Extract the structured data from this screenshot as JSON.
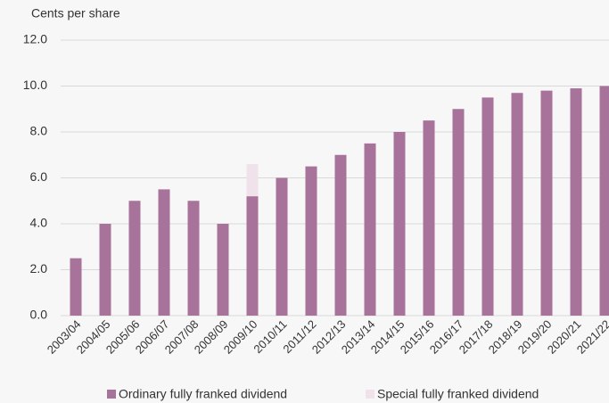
{
  "chart_data": {
    "type": "stacked_bar",
    "y_axis_label": "Cents per share",
    "categories": [
      "2003/04",
      "2004/05",
      "2005/06",
      "2006/07",
      "2007/08",
      "2008/09",
      "2009/10",
      "2010/11",
      "2011/12",
      "2012/13",
      "2013/14",
      "2014/15",
      "2015/16",
      "2016/17",
      "2017/18",
      "2018/19",
      "2019/20",
      "2020/21",
      "2021/22"
    ],
    "series": [
      {
        "name": "Ordinary fully franked dividend",
        "color": "#a8739b",
        "values": [
          2.5,
          4.0,
          5.0,
          5.5,
          5.0,
          4.0,
          5.2,
          6.0,
          6.5,
          7.0,
          7.5,
          8.0,
          8.5,
          9.0,
          9.5,
          9.7,
          9.8,
          9.9,
          10.0
        ]
      },
      {
        "name": "Special fully franked dividend",
        "color": "#f0e2ea",
        "values": [
          null,
          null,
          null,
          null,
          null,
          null,
          1.4,
          null,
          null,
          null,
          null,
          null,
          null,
          null,
          null,
          null,
          null,
          null,
          null
        ]
      }
    ],
    "ylim": [
      0,
      12
    ],
    "yticks": [
      {
        "value": 0,
        "label": "0.0"
      },
      {
        "value": 2,
        "label": "2.0"
      },
      {
        "value": 4,
        "label": "4.0"
      },
      {
        "value": 6,
        "label": "6.0"
      },
      {
        "value": 8,
        "label": "8.0"
      },
      {
        "value": 10,
        "label": "10.0"
      },
      {
        "value": 12,
        "label": "12.0"
      }
    ],
    "grid": true,
    "legend": "bottom"
  }
}
